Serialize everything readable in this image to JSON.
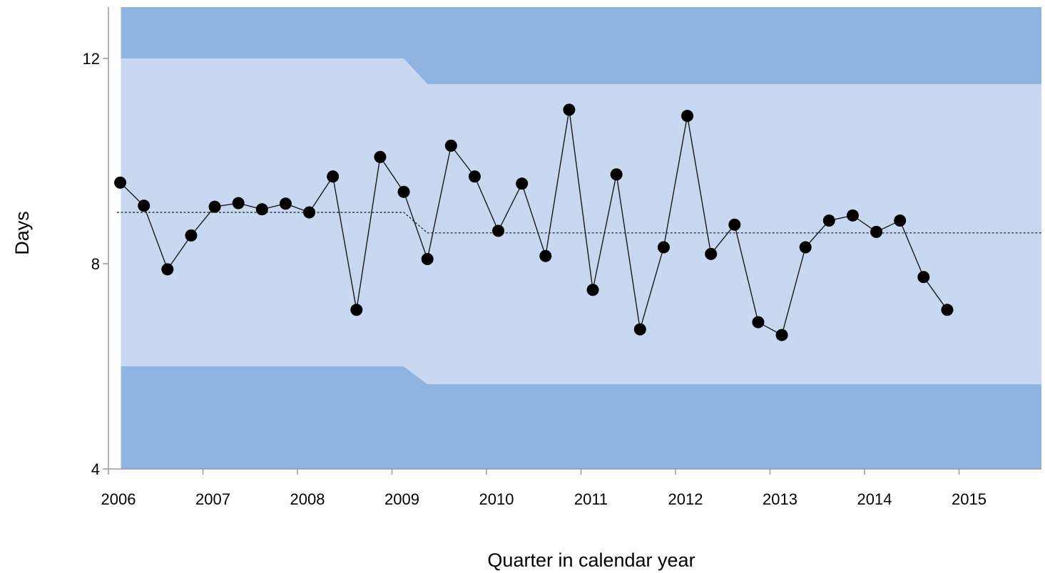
{
  "chart_data": {
    "type": "line",
    "title": "",
    "xlabel": "Quarter in calendar year",
    "ylabel": "Days",
    "x_tick_labels": [
      "2006",
      "2007",
      "2008",
      "2009",
      "2010",
      "2011",
      "2012",
      "2013",
      "2014",
      "2015"
    ],
    "y_ticks": [
      4,
      8,
      12
    ],
    "ylim": [
      4,
      13
    ],
    "xlim": [
      2006.0,
      2015.875
    ],
    "grid": false,
    "legend": "none",
    "colors": {
      "outer_band": "#8fb4e2",
      "inner_band": "#c7d8f0",
      "series": "#000000"
    },
    "series": [
      {
        "x": [
          2006.125,
          2006.375,
          2006.625,
          2006.875,
          2007.125,
          2007.375,
          2007.625,
          2007.875,
          2008.125,
          2008.375,
          2008.625,
          2008.875,
          2009.125,
          2009.375,
          2009.625,
          2009.875,
          2010.125,
          2010.375,
          2010.625,
          2010.875,
          2011.125,
          2011.375,
          2011.625,
          2011.875,
          2012.125,
          2012.375,
          2012.625,
          2012.875,
          2013.125,
          2013.375,
          2013.625,
          2013.875,
          2014.125,
          2014.375,
          2014.625,
          2014.875
        ],
        "values": [
          9.58,
          9.13,
          7.89,
          8.55,
          9.11,
          9.18,
          9.06,
          9.17,
          9.0,
          9.7,
          7.1,
          10.08,
          9.4,
          8.09,
          10.3,
          9.7,
          8.64,
          9.56,
          8.15,
          11.0,
          7.49,
          9.74,
          6.72,
          8.32,
          10.88,
          8.19,
          8.76,
          6.86,
          6.61,
          8.32,
          8.84,
          8.94,
          8.62,
          8.84,
          7.74,
          7.1
        ]
      }
    ],
    "centre_line": {
      "segments": [
        {
          "x_start": 2006.0,
          "x_end": 2009.125,
          "value": 9.0
        },
        {
          "x_start": 2009.375,
          "x_end": 2015.875,
          "value": 8.6
        }
      ]
    },
    "control_limits": {
      "segments": [
        {
          "x_start": 2006.125,
          "x_end": 2009.125,
          "upper": 12.0,
          "lower": 6.0
        },
        {
          "x_start": 2009.375,
          "x_end": 2015.875,
          "upper": 11.5,
          "lower": 5.65
        }
      ]
    }
  }
}
